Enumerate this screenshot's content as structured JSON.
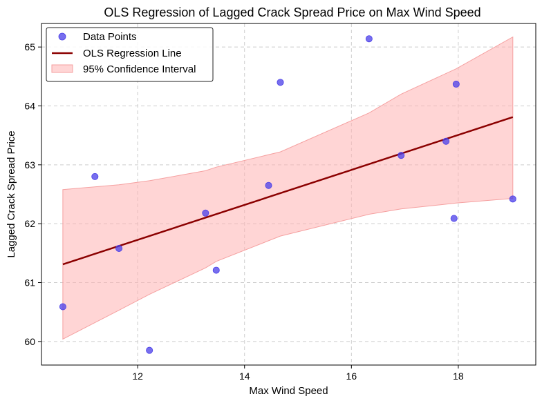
{
  "chart_data": {
    "type": "scatter",
    "title": "OLS Regression of Lagged Crack Spread Price on Max Wind Speed",
    "xlabel": "Max Wind Speed",
    "ylabel": "Lagged Crack Spread Price",
    "xlim": [
      10.2,
      19.45
    ],
    "ylim": [
      59.6,
      65.4
    ],
    "xticks": [
      12,
      14,
      16,
      18
    ],
    "yticks": [
      60,
      61,
      62,
      63,
      64,
      65
    ],
    "grid": true,
    "legend_position": "top-left",
    "colors": {
      "points": "#4a3ee8",
      "line": "#8b0000",
      "band": "#ffb3b3",
      "band_edge": "#f5a0a0",
      "grid": "#cccccc"
    },
    "series": [
      {
        "name": "Data Points",
        "kind": "scatter",
        "x": [
          10.6,
          11.2,
          11.65,
          12.22,
          13.27,
          13.47,
          14.45,
          14.67,
          16.33,
          16.93,
          17.77,
          17.92,
          17.96,
          19.02
        ],
        "y": [
          60.59,
          62.8,
          61.58,
          59.85,
          62.18,
          61.21,
          62.65,
          64.4,
          65.14,
          63.16,
          63.4,
          62.09,
          64.37,
          62.42
        ]
      },
      {
        "name": "OLS Regression Line",
        "kind": "line",
        "x": [
          10.6,
          19.02
        ],
        "y": [
          61.31,
          63.81
        ]
      },
      {
        "name": "95% Confidence Interval",
        "kind": "band",
        "x": [
          10.6,
          11.65,
          12.22,
          13.27,
          13.47,
          14.67,
          16.33,
          16.93,
          17.96,
          19.02
        ],
        "lower": [
          60.04,
          60.53,
          60.8,
          61.25,
          61.36,
          61.79,
          62.16,
          62.25,
          62.35,
          62.43
        ],
        "upper": [
          62.58,
          62.66,
          62.73,
          62.9,
          62.96,
          63.22,
          63.88,
          64.2,
          64.63,
          65.17
        ]
      }
    ]
  }
}
